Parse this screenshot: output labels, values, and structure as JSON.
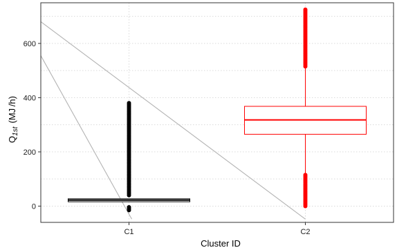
{
  "chart_data": {
    "type": "box",
    "xlabel": "Cluster ID",
    "ylabel": {
      "symbol": "Q",
      "subscript": "1st",
      "unit": "(MJ /h)"
    },
    "ylim": [
      -60,
      750
    ],
    "yticks": [
      0,
      200,
      400,
      600
    ],
    "ytick_labels": [
      "0",
      "200",
      "400",
      "600"
    ],
    "grid": true,
    "categories": [
      "C1",
      "C2"
    ],
    "boxes": [
      {
        "name": "C1",
        "color": "#000000",
        "q1": 16,
        "median": 22,
        "q3": 27,
        "whisker_low": 16,
        "whisker_high": 27,
        "outliers_high_from": 40,
        "outliers_high_to": 380,
        "outliers_low_from": -15,
        "outliers_low_to": -4
      },
      {
        "name": "C2",
        "color": "#ff0000",
        "q1": 265,
        "median": 318,
        "q3": 368,
        "whisker_low": 120,
        "whisker_high": 510,
        "outliers_high_from": 515,
        "outliers_high_to": 725,
        "outliers_low_from": 0,
        "outliers_low_to": 115
      }
    ],
    "decorative_lines_color": "#b3b3b3"
  }
}
